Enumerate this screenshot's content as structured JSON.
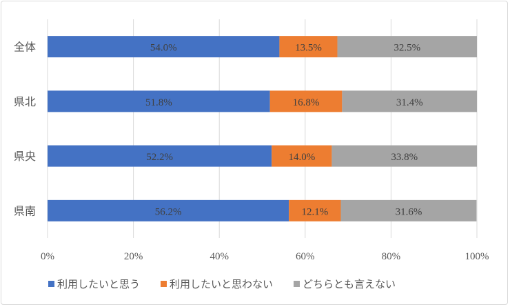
{
  "chart_data": {
    "type": "bar",
    "orientation": "horizontal",
    "stacked": true,
    "percent_stacked": true,
    "categories": [
      "全体",
      "県北",
      "県央",
      "県南"
    ],
    "series": [
      {
        "name": "利用したいと思う",
        "color": "#4472C4",
        "values": [
          54.0,
          51.8,
          52.2,
          56.2
        ],
        "labels": [
          "54.0%",
          "51.8%",
          "52.2%",
          "56.2%"
        ]
      },
      {
        "name": "利用したいと思わない",
        "color": "#ED7D31",
        "values": [
          13.5,
          16.8,
          14.0,
          12.1
        ],
        "labels": [
          "13.5%",
          "16.8%",
          "14.0%",
          "12.1%"
        ]
      },
      {
        "name": "どちらとも言えない",
        "color": "#A5A5A5",
        "values": [
          32.5,
          31.4,
          33.8,
          31.6
        ],
        "labels": [
          "32.5%",
          "31.4%",
          "33.8%",
          "31.6%"
        ]
      }
    ],
    "xlim": [
      0,
      100
    ],
    "xticks": [
      "0%",
      "20%",
      "40%",
      "60%",
      "80%",
      "100%"
    ],
    "grid": true,
    "legend": "bottom"
  }
}
